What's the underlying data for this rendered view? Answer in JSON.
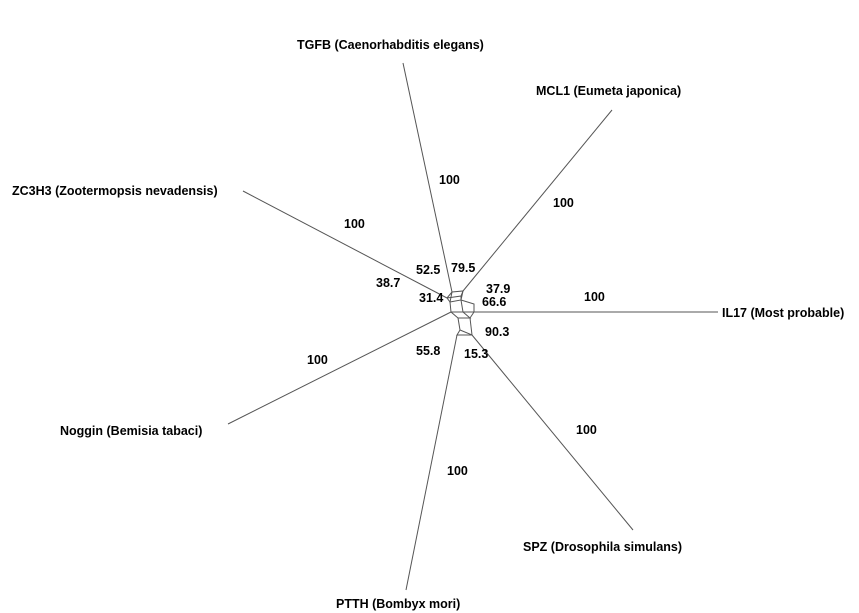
{
  "taxa": {
    "tgfb": "TGFB (Caenorhabditis elegans)",
    "mcl1": "MCL1 (Eumeta japonica)",
    "zc3h3": "ZC3H3 (Zootermopsis nevadensis)",
    "il17": "IL17 (Most probable)",
    "noggin": "Noggin (Bemisia tabaci)",
    "spz": "SPZ (Drosophila simulans)",
    "ptth": "PTTH (Bombyx mori)"
  },
  "branch_support": {
    "tgfb": "100",
    "mcl1": "100",
    "zc3h3": "100",
    "il17": "100",
    "noggin": "100",
    "spz": "100",
    "ptth": "100"
  },
  "split_support": {
    "s52_5": "52.5",
    "s79_5": "79.5",
    "s38_7": "38.7",
    "s31_4": "31.4",
    "s37_9": "37.9",
    "s66_6": "66.6",
    "s90_3": "90.3",
    "s55_8": "55.8",
    "s15_3": "15.3"
  }
}
